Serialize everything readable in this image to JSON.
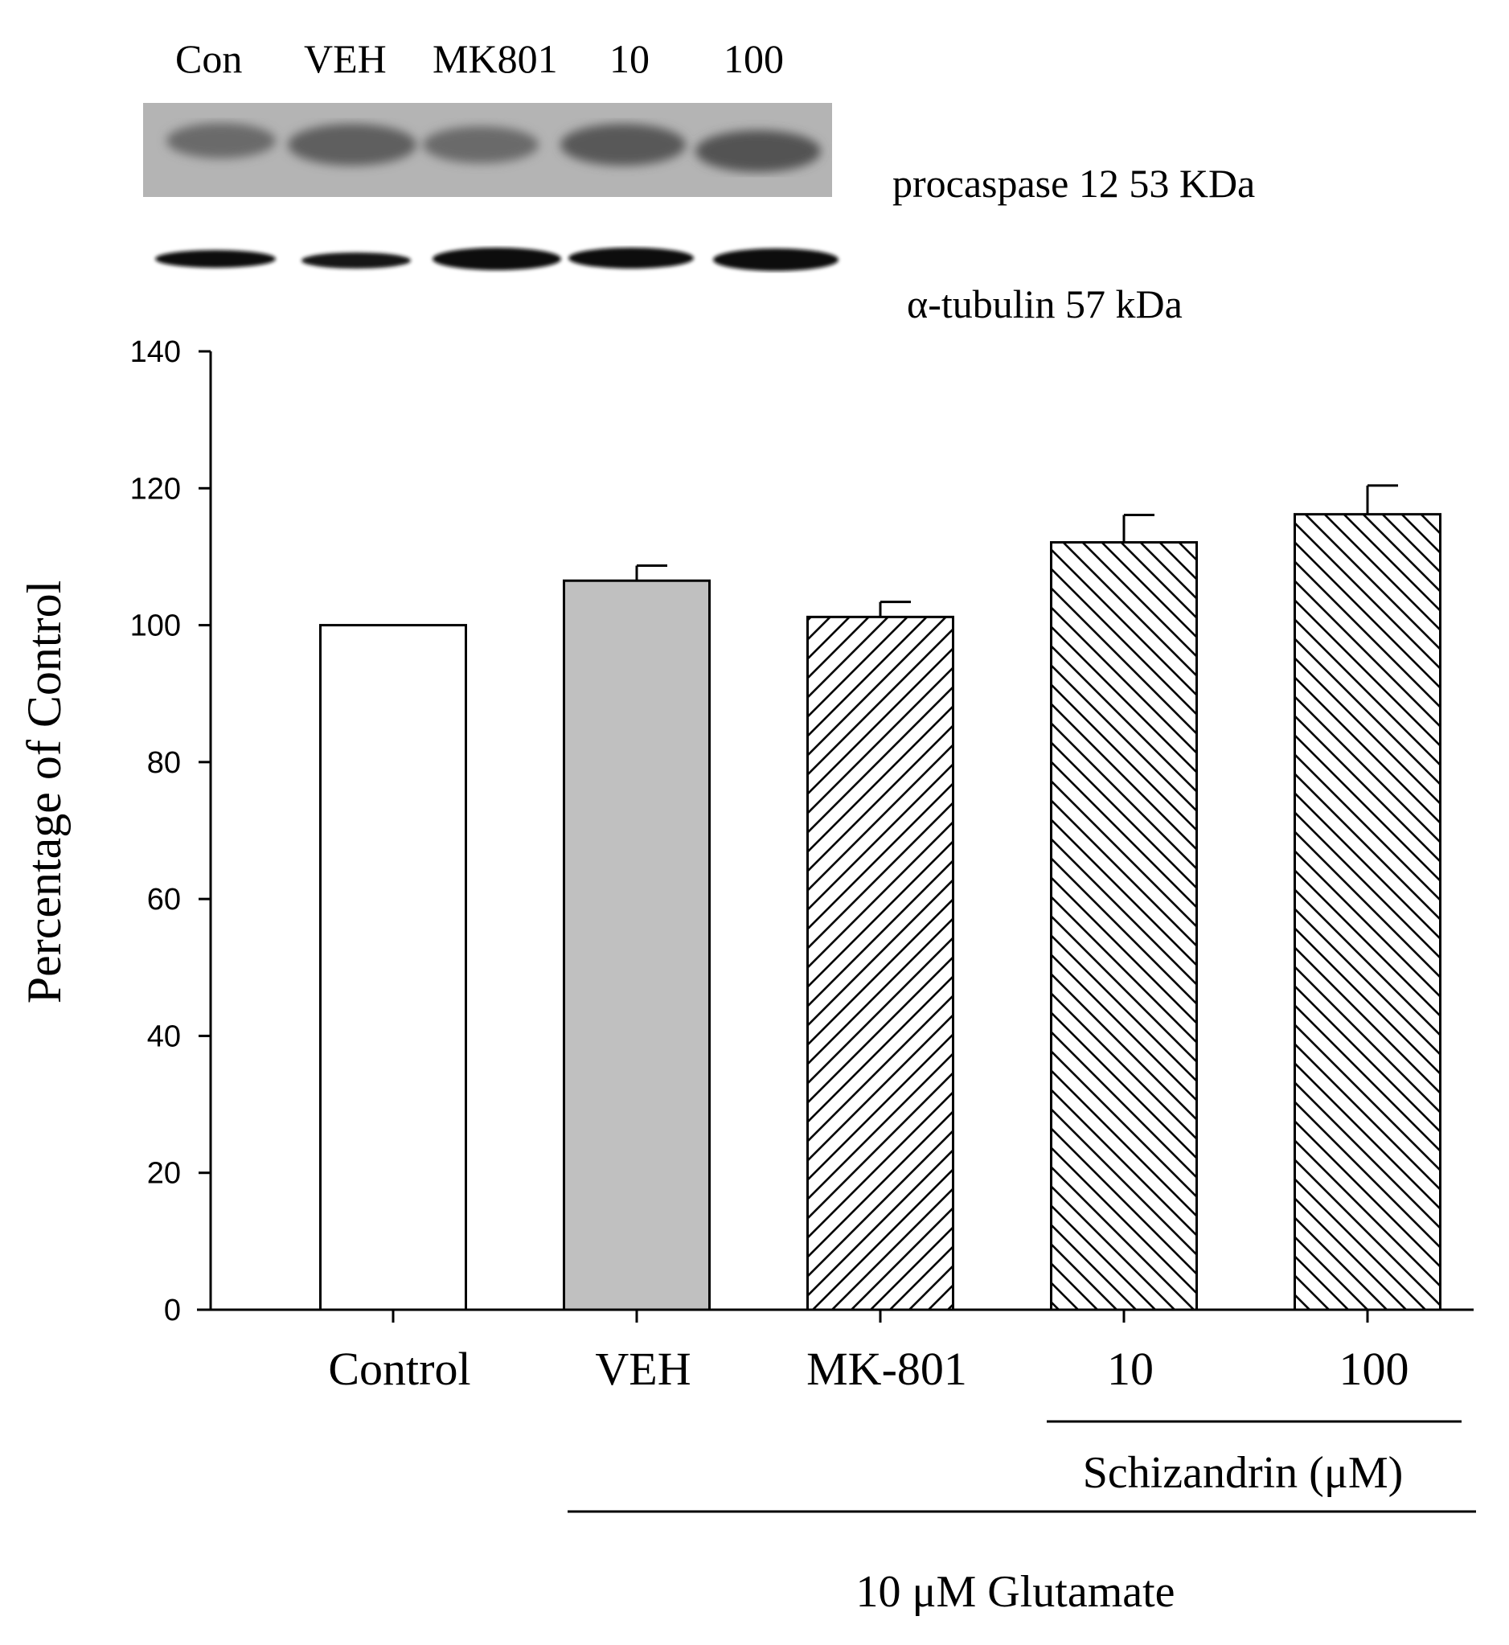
{
  "blot": {
    "lane_labels": [
      "Con",
      "VEH",
      "MK801",
      "10",
      "100"
    ],
    "row1_label": "procaspase 12 53 KDa",
    "row2_label": "α-tubulin 57 kDa"
  },
  "chart_data": {
    "type": "bar",
    "ylabel": "Percentage of Control",
    "ylim": [
      0,
      140
    ],
    "yticks": [
      0,
      20,
      40,
      60,
      80,
      100,
      120,
      140
    ],
    "categories": [
      "Control",
      "VEH",
      "MK-801",
      "10",
      "100"
    ],
    "values": [
      100,
      106.5,
      101.2,
      112.1,
      116.2
    ],
    "errors": [
      0,
      2.2,
      2.2,
      4.0,
      4.2
    ],
    "fills": [
      "white",
      "gray",
      "hatch-forward",
      "hatch-back",
      "hatch-back"
    ],
    "gray_color": "#c0c0c0",
    "group_labels": {
      "schizandrin": "Schizandrin (μM)",
      "glutamate": "10 μM Glutamate"
    }
  }
}
